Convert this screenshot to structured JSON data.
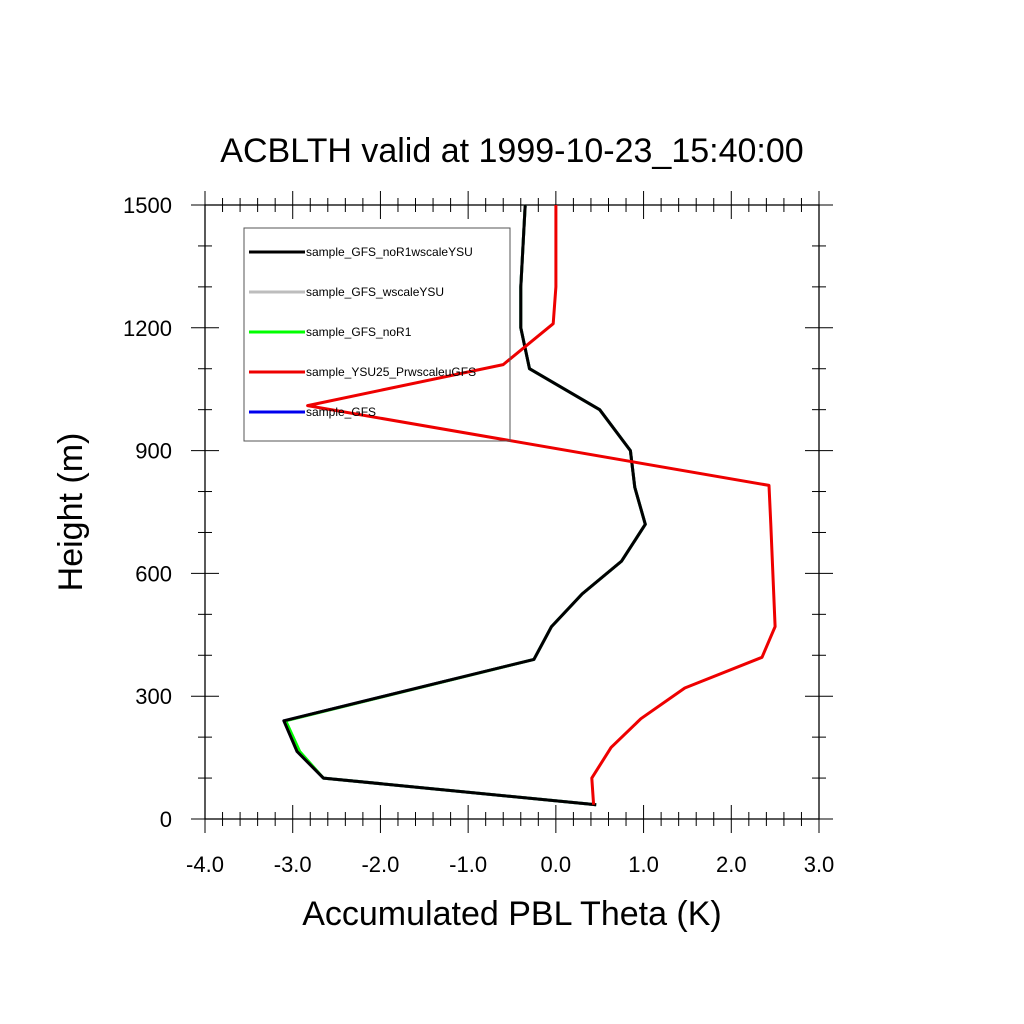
{
  "chart_data": {
    "type": "line",
    "title": "ACBLTH valid at 1999-10-23_15:40:00",
    "xlabel": "Accumulated PBL Theta (K)",
    "ylabel": "Height (m)",
    "xlim": [
      -4.0,
      3.0
    ],
    "ylim": [
      0,
      1500
    ],
    "xticks": [
      -4.0,
      -3.0,
      -2.0,
      -1.0,
      0.0,
      1.0,
      2.0,
      3.0
    ],
    "xtick_labels": [
      "-4.0",
      "-3.0",
      "-2.0",
      "-1.0",
      "0.0",
      "1.0",
      "2.0",
      "3.0"
    ],
    "yticks": [
      0,
      300,
      600,
      900,
      1200,
      1500
    ],
    "ytick_labels": [
      "0",
      "300",
      "600",
      "900",
      "1200",
      "1500"
    ],
    "grid": false,
    "legend_position": "top-left",
    "series": [
      {
        "name": "sample_GFS_noR1wscaleYSU",
        "color": "#000000",
        "points": [
          [
            0.46,
            35
          ],
          [
            -2.65,
            100
          ],
          [
            -2.95,
            165
          ],
          [
            -3.1,
            240
          ],
          [
            -0.25,
            390
          ],
          [
            -0.05,
            470
          ],
          [
            0.3,
            550
          ],
          [
            0.75,
            630
          ],
          [
            1.02,
            720
          ],
          [
            0.9,
            810
          ],
          [
            0.85,
            900
          ],
          [
            0.5,
            1000
          ],
          [
            -0.3,
            1100
          ],
          [
            -0.4,
            1200
          ],
          [
            -0.4,
            1300
          ],
          [
            -0.35,
            1500
          ]
        ]
      },
      {
        "name": "sample_GFS_wscaleYSU",
        "color": "#bdbdbd",
        "points": [
          [
            0.46,
            35
          ],
          [
            -2.65,
            100
          ],
          [
            -2.95,
            165
          ],
          [
            -3.1,
            240
          ],
          [
            -0.25,
            390
          ],
          [
            -0.05,
            470
          ],
          [
            0.3,
            550
          ],
          [
            0.75,
            630
          ],
          [
            1.02,
            720
          ],
          [
            0.9,
            810
          ],
          [
            0.85,
            900
          ],
          [
            0.5,
            1000
          ],
          [
            -0.3,
            1100
          ],
          [
            -0.4,
            1200
          ],
          [
            -0.4,
            1300
          ],
          [
            -0.35,
            1500
          ]
        ]
      },
      {
        "name": "sample_GFS_noR1",
        "color": "#00ff00",
        "points": [
          [
            0.46,
            35
          ],
          [
            -2.65,
            100
          ],
          [
            -2.92,
            165
          ],
          [
            -3.08,
            240
          ],
          [
            -0.25,
            390
          ],
          [
            -0.05,
            470
          ],
          [
            0.3,
            550
          ],
          [
            0.75,
            630
          ],
          [
            1.02,
            720
          ],
          [
            0.9,
            810
          ],
          [
            0.85,
            900
          ],
          [
            0.5,
            1000
          ],
          [
            -0.3,
            1100
          ],
          [
            -0.4,
            1200
          ],
          [
            -0.4,
            1300
          ],
          [
            -0.35,
            1500
          ]
        ]
      },
      {
        "name": "sample_YSU25_PrwscaleuGFS",
        "color": "#ee0000",
        "points": [
          [
            0.43,
            35
          ],
          [
            0.41,
            100
          ],
          [
            0.63,
            175
          ],
          [
            0.97,
            245
          ],
          [
            1.47,
            320
          ],
          [
            2.35,
            395
          ],
          [
            2.5,
            470
          ],
          [
            2.45,
            720
          ],
          [
            2.43,
            815
          ],
          [
            -2.83,
            1010
          ],
          [
            -0.6,
            1110
          ],
          [
            -0.03,
            1210
          ],
          [
            0.0,
            1300
          ],
          [
            0.0,
            1500
          ]
        ]
      },
      {
        "name": "sample_GFS",
        "color": "#0000ee",
        "points": [
          [
            0.46,
            35
          ],
          [
            -2.65,
            100
          ],
          [
            -2.95,
            165
          ],
          [
            -3.1,
            240
          ],
          [
            -0.25,
            390
          ],
          [
            -0.05,
            470
          ],
          [
            0.3,
            550
          ],
          [
            0.75,
            630
          ],
          [
            1.02,
            720
          ],
          [
            0.9,
            810
          ],
          [
            0.85,
            900
          ],
          [
            0.5,
            1000
          ],
          [
            -0.3,
            1100
          ],
          [
            -0.4,
            1200
          ],
          [
            -0.4,
            1300
          ],
          [
            -0.35,
            1500
          ]
        ]
      }
    ]
  }
}
